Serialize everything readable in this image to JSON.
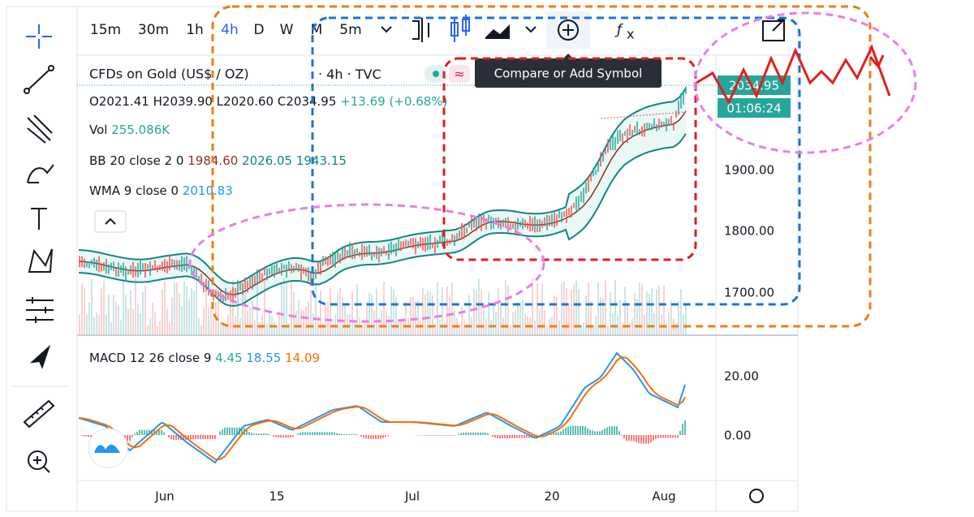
{
  "toolbar": {
    "intervals": [
      "15m",
      "30m",
      "1h",
      "4h",
      "D",
      "W",
      "M",
      "5m"
    ]
  },
  "tooltip": "Compare or Add Symbol",
  "legend": {
    "symbol": "CFDs on Gold (US$ / OZ)",
    "interval": "4h",
    "source": "TVC",
    "ohlc": [
      "O2021.41",
      "H2039.90",
      "L2020.60",
      "C2034.95",
      "+13.69 (+0.68%)"
    ],
    "volume": {
      "label": "Vol",
      "value": "255.086K"
    },
    "bb": {
      "label": "BB 20 close 2 0",
      "values": [
        "1984.60",
        "2026.05",
        "1943.15"
      ]
    },
    "wma": {
      "label": "WMA 9 close 0",
      "value": "2010.83"
    }
  },
  "price_axis": {
    "last_price": "2034.95",
    "countdown": "01:06:24",
    "ticks": [
      "1900.00",
      "1800.00",
      "1700.00"
    ]
  },
  "macd": {
    "label": "MACD 12 26 close 9",
    "values": [
      "4.45",
      "18.55",
      "14.09"
    ],
    "ticks": [
      "20.00",
      "0.00"
    ]
  },
  "time_axis": [
    "Jun",
    "15",
    "Jul",
    "20",
    "Aug"
  ]
}
